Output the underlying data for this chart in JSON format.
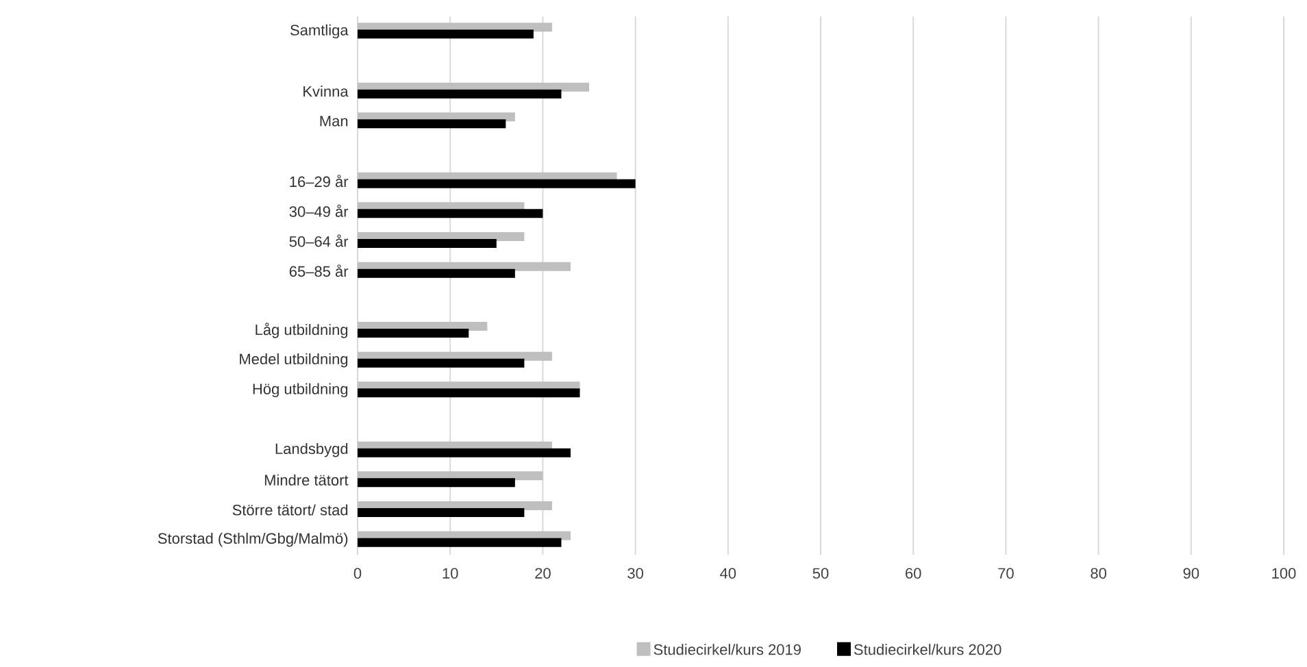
{
  "chart_data": {
    "type": "bar",
    "orientation": "horizontal",
    "categories": [
      "Samtliga",
      null,
      "Kvinna",
      "Man",
      null,
      "16–29 år",
      "30–49 år",
      "50–64 år",
      "65–85 år",
      null,
      "Låg utbildning",
      "Medel utbildning",
      "Hög utbildning",
      null,
      "Landsbygd",
      "Mindre tätort",
      "Större tätort/ stad",
      "Storstad (Sthlm/Gbg/Malmö)"
    ],
    "series": [
      {
        "name": "Studiecirkel/kurs 2019",
        "color": "#bfbfbf",
        "values": [
          21,
          null,
          25,
          17,
          null,
          28,
          18,
          18,
          23,
          null,
          14,
          21,
          24,
          null,
          21,
          20,
          21,
          23
        ]
      },
      {
        "name": "Studiecirkel/kurs 2020",
        "color": "#000000",
        "values": [
          19,
          null,
          22,
          16,
          null,
          30,
          20,
          15,
          17,
          null,
          12,
          18,
          24,
          null,
          23,
          17,
          18,
          22
        ]
      }
    ],
    "xlim": [
      0,
      100
    ],
    "xticks": [
      0,
      10,
      20,
      30,
      40,
      50,
      60,
      70,
      80,
      90,
      100
    ],
    "grid": "x",
    "legend": "bottom"
  }
}
